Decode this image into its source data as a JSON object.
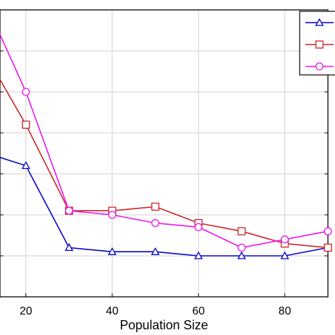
{
  "chart_data": {
    "type": "line",
    "title": "",
    "xlabel": "Population Size",
    "ylabel": "",
    "xlim": [
      14,
      90
    ],
    "ylim": [
      0,
      7
    ],
    "xticks": [
      20,
      40,
      60,
      80
    ],
    "xtick_labels": [
      "20",
      "40",
      "60",
      "80"
    ],
    "yticks": [
      1,
      2,
      3,
      4,
      5,
      6
    ],
    "grid": true,
    "legend_position": "top-right",
    "series": [
      {
        "color": "#0000cc",
        "marker": "triangle",
        "x": [
          14,
          20,
          30,
          40,
          50,
          60,
          70,
          80,
          90
        ],
        "y": [
          3.4,
          3.2,
          1.2,
          1.1,
          1.1,
          1.0,
          1.0,
          1.0,
          1.2
        ]
      },
      {
        "color": "#cc2222",
        "marker": "square",
        "x": [
          14,
          20,
          30,
          40,
          50,
          60,
          70,
          80,
          90
        ],
        "y": [
          5.3,
          4.2,
          2.1,
          2.1,
          2.2,
          1.8,
          1.6,
          1.3,
          1.2
        ]
      },
      {
        "color": "#ee11ee",
        "marker": "circle",
        "x": [
          14,
          20,
          30,
          40,
          50,
          60,
          70,
          80,
          90
        ],
        "y": [
          6.4,
          5.0,
          2.1,
          2.0,
          1.8,
          1.7,
          1.2,
          1.4,
          1.6
        ]
      }
    ]
  }
}
